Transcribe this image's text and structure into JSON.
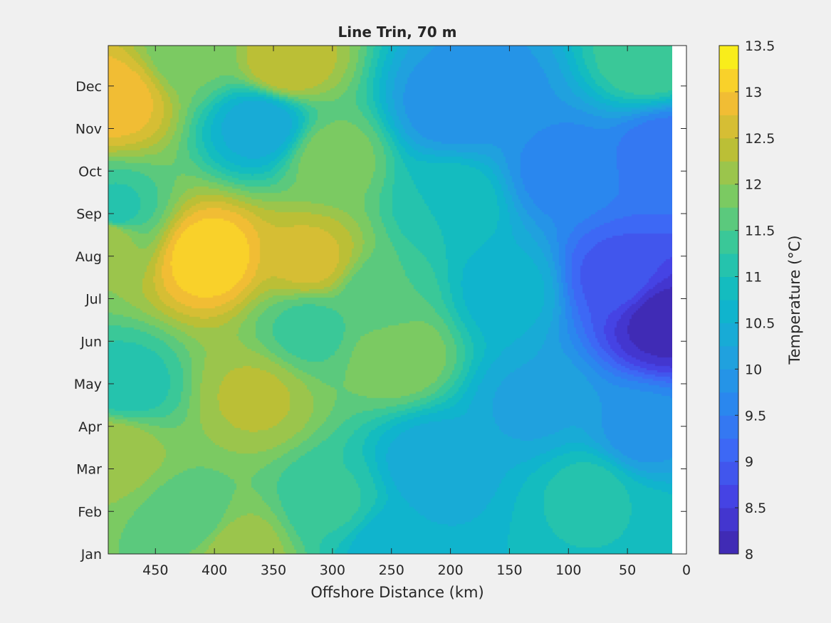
{
  "chart_data": {
    "type": "heatmap",
    "subtype": "filled-contour",
    "title": "Line Trin, 70 m",
    "xlabel": "Offshore Distance (km)",
    "ylabel": "",
    "x_direction": "reversed",
    "xlim": [
      0,
      490
    ],
    "x_ticks": [
      450,
      400,
      350,
      300,
      250,
      200,
      150,
      100,
      50,
      0
    ],
    "y_ticks": [
      "Jan",
      "Feb",
      "Mar",
      "Apr",
      "May",
      "Jun",
      "Jul",
      "Aug",
      "Sep",
      "Oct",
      "Nov",
      "Dec"
    ],
    "y_tick_months": [
      0,
      1,
      2,
      3,
      4,
      5,
      6,
      7,
      8,
      9,
      10,
      11
    ],
    "ylim_months": [
      0,
      11.95
    ],
    "x_data_max": 12,
    "colorbar": {
      "label": "Temperature (°C)",
      "range": [
        8,
        13.5
      ],
      "ticks": [
        "8",
        "8.5",
        "9",
        "9.5",
        "10",
        "10.5",
        "11",
        "11.5",
        "12",
        "12.5",
        "13",
        "13.5"
      ],
      "level_step": 0.25
    },
    "features": [
      {
        "x": 485,
        "month": 10.7,
        "value": 12.9
      },
      {
        "x": 405,
        "month": 7.0,
        "value": 13.2
      },
      {
        "x": 320,
        "month": 6.9,
        "value": 12.6
      },
      {
        "x": 340,
        "month": 11.5,
        "value": 12.5
      },
      {
        "x": 360,
        "month": 10.1,
        "value": 10.3
      },
      {
        "x": 490,
        "month": 7.5,
        "value": 12.2
      },
      {
        "x": 485,
        "month": 2.5,
        "value": 12.2
      },
      {
        "x": 365,
        "month": 3.7,
        "value": 12.3
      },
      {
        "x": 245,
        "month": 4.7,
        "value": 12.0
      },
      {
        "x": 475,
        "month": 3.9,
        "value": 11.1
      },
      {
        "x": 485,
        "month": 8.0,
        "value": 11.1
      },
      {
        "x": 200,
        "month": 8.3,
        "value": 11.0
      },
      {
        "x": 215,
        "month": 2.1,
        "value": 10.3
      },
      {
        "x": 250,
        "month": 0.2,
        "value": 10.5
      },
      {
        "x": 200,
        "month": 10.5,
        "value": 9.8
      },
      {
        "x": 165,
        "month": 10.8,
        "value": 9.9
      },
      {
        "x": 105,
        "month": 9.0,
        "value": 9.6
      },
      {
        "x": 15,
        "month": 9.5,
        "value": 9.3
      },
      {
        "x": 20,
        "month": 5.5,
        "value": 8.1
      },
      {
        "x": 60,
        "month": 6.5,
        "value": 8.9
      },
      {
        "x": 40,
        "month": 2.8,
        "value": 9.9
      },
      {
        "x": 50,
        "month": 0.6,
        "value": 11.0
      },
      {
        "x": 30,
        "month": 11.6,
        "value": 11.5
      },
      {
        "x": 80,
        "month": 1.5,
        "value": 11.1
      },
      {
        "x": 300,
        "month": 1.2,
        "value": 11.3
      },
      {
        "x": 420,
        "month": 0.8,
        "value": 11.6
      },
      {
        "x": 380,
        "month": 0.05,
        "value": 12.2
      },
      {
        "x": 320,
        "month": 5.3,
        "value": 11.4
      },
      {
        "x": 130,
        "month": 3.5,
        "value": 10.2
      },
      {
        "x": 300,
        "month": 9.3,
        "value": 11.9
      },
      {
        "x": 420,
        "month": 11.8,
        "value": 11.8
      },
      {
        "x": 260,
        "month": 6.0,
        "value": 11.5
      },
      {
        "x": 150,
        "month": 6.2,
        "value": 10.6
      }
    ]
  }
}
